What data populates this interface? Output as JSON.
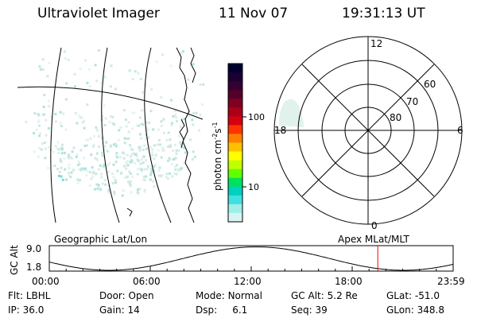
{
  "header": {
    "instrument": "Ultraviolet Imager",
    "date": "11 Nov 07",
    "time": "19:31:13 UT"
  },
  "colorbar": {
    "label_base": "photon cm",
    "label_exp1": "-2",
    "label_mid": "s",
    "label_exp2": "-1",
    "ticks": [
      "100",
      "10"
    ],
    "colors": [
      "#000033",
      "#1a0033",
      "#330033",
      "#55002a",
      "#800020",
      "#aa0018",
      "#d40010",
      "#ff3300",
      "#ff8000",
      "#ffc000",
      "#ffff00",
      "#c0ff00",
      "#60ff00",
      "#00e060",
      "#00d0c0",
      "#40e0e0",
      "#a0eee8",
      "#d8f4f0"
    ]
  },
  "geo_panel": {
    "label": "Geographic Lat/Lon"
  },
  "polar_plot": {
    "label": "Apex MLat/MLT",
    "mlt_labels": {
      "top": "12",
      "left": "18",
      "right": "6",
      "bottom": "0"
    },
    "lat_labels": [
      "60",
      "70",
      "80"
    ]
  },
  "altitude_plot": {
    "ylabel": "GC Alt",
    "yticks": [
      "9.0",
      "1.8"
    ],
    "xticks": [
      "00:00",
      "06:00",
      "12:00",
      "18:00",
      "23:59"
    ],
    "marker_color": "#ff0000",
    "marker_time_hours": 19.52
  },
  "info": {
    "flt_label": "Flt:",
    "flt_value": "LBHL",
    "door_label": "Door:",
    "door_value": "Open",
    "mode_label": "Mode:",
    "mode_value": "Normal",
    "gcalt_label": "GC Alt:",
    "gcalt_value": "5.2 Re",
    "glat_label": "GLat:",
    "glat_value": "-51.0",
    "ip_label": "IP:",
    "ip_value": "36.0",
    "gain_label": "Gain:",
    "gain_value": "14",
    "dsp_label": "Dsp:",
    "dsp_value": "6.1",
    "seq_label": "Seq:",
    "seq_value": "39",
    "glon_label": "GLon:",
    "glon_value": "348.8"
  }
}
